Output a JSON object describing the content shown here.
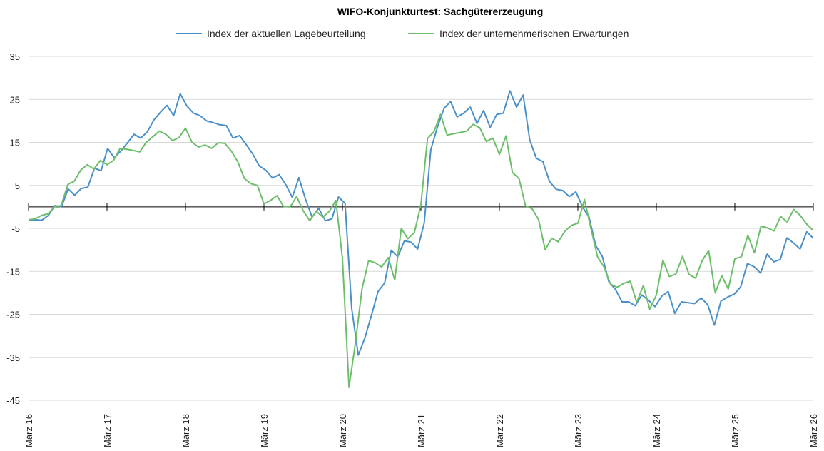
{
  "chart_data": {
    "type": "line",
    "title": "WIFO-Konjunkturtest: Sachgütererzeugung",
    "xlabel": "",
    "ylabel": "",
    "ylim": [
      -45,
      35
    ],
    "yticks": [
      35,
      25,
      15,
      5,
      -5,
      -15,
      -25,
      -35,
      -45
    ],
    "xticks": [
      "März 16",
      "März 17",
      "März 18",
      "März 19",
      "März 20",
      "März 21",
      "März 22",
      "März 23",
      "März 24",
      "März 25",
      "März 26"
    ],
    "grid": true,
    "legend": "top",
    "series": [
      {
        "name": "Index der aktuellen Lagebeurteilung",
        "color": "#4a90c8",
        "values": [
          -3.2,
          -3.0,
          -3.1,
          -2.0,
          0.3,
          0.0,
          4.2,
          2.7,
          4.3,
          4.6,
          9.0,
          8.4,
          13.6,
          11.4,
          13.0,
          14.9,
          16.9,
          16.0,
          17.4,
          20.2,
          22.0,
          23.6,
          21.2,
          26.3,
          23.5,
          21.8,
          21.2,
          20.0,
          19.6,
          19.1,
          18.9,
          16.0,
          16.6,
          14.5,
          12.3,
          9.5,
          8.5,
          6.7,
          7.5,
          5.2,
          2.2,
          6.8,
          1.8,
          -2.4,
          -0.3,
          -3.2,
          -2.8,
          2.3,
          0.8,
          -23.5,
          -34.5,
          -30.5,
          -25.2,
          -19.7,
          -17.7,
          -10.1,
          -11.6,
          -7.9,
          -8.2,
          -9.8,
          -3.8,
          13.3,
          18.5,
          22.9,
          24.5,
          20.9,
          21.8,
          23.2,
          19.4,
          22.4,
          18.5,
          21.5,
          21.8,
          27.0,
          23.2,
          26.0,
          15.6,
          11.3,
          10.5,
          5.9,
          4.1,
          3.8,
          2.4,
          3.5,
          0.0,
          -2.4,
          -9.0,
          -11.5,
          -17.4,
          -19.2,
          -22.1,
          -22.1,
          -23.0,
          -20.5,
          -21.7,
          -23.2,
          -20.8,
          -19.7,
          -24.8,
          -22.1,
          -22.3,
          -22.5,
          -21.2,
          -22.8,
          -27.5,
          -21.9,
          -21.0,
          -20.3,
          -18.6,
          -13.2,
          -13.9,
          -15.4,
          -11.0,
          -12.8,
          -12.2,
          -7.2,
          -8.4,
          -9.8,
          -5.8,
          -7.3
        ]
      },
      {
        "name": "Index der unternehmerischen Erwartungen",
        "color": "#6cbe6a",
        "values": [
          -3.0,
          -2.8,
          -2.0,
          -1.6,
          0.1,
          0.3,
          5.2,
          6.0,
          8.6,
          9.8,
          8.8,
          10.8,
          9.8,
          10.8,
          13.6,
          13.4,
          13.1,
          12.8,
          15.0,
          16.3,
          17.6,
          16.9,
          15.4,
          16.1,
          18.3,
          15.0,
          13.9,
          14.4,
          13.6,
          14.9,
          14.8,
          13.0,
          10.5,
          6.6,
          5.4,
          5.0,
          0.7,
          1.5,
          2.6,
          0.1,
          0.0,
          2.4,
          -0.9,
          -3.2,
          -1.0,
          -2.4,
          -1.0,
          1.5,
          -12.0,
          -42.0,
          -31.5,
          -19.0,
          -12.5,
          -13.0,
          -14.0,
          -11.8,
          -17.0,
          -5.0,
          -7.4,
          -6.0,
          0.5,
          15.9,
          17.5,
          21.5,
          16.7,
          17.0,
          17.3,
          17.6,
          19.2,
          18.4,
          15.2,
          16.0,
          12.2,
          16.5,
          8.0,
          6.6,
          0.2,
          -0.4,
          -3.0,
          -10.0,
          -7.3,
          -8.1,
          -5.7,
          -4.3,
          -3.8,
          1.7,
          -5.0,
          -11.6,
          -14.0,
          -18.0,
          -18.7,
          -17.8,
          -17.3,
          -22.2,
          -18.3,
          -23.8,
          -20.5,
          -12.4,
          -16.2,
          -15.6,
          -11.5,
          -15.7,
          -16.6,
          -12.5,
          -10.2,
          -20.0,
          -16.0,
          -19.1,
          -12.1,
          -11.6,
          -6.6,
          -10.7,
          -4.5,
          -4.9,
          -5.6,
          -2.2,
          -3.5,
          -0.6,
          -2.0,
          -4.0,
          -5.5
        ]
      }
    ]
  }
}
